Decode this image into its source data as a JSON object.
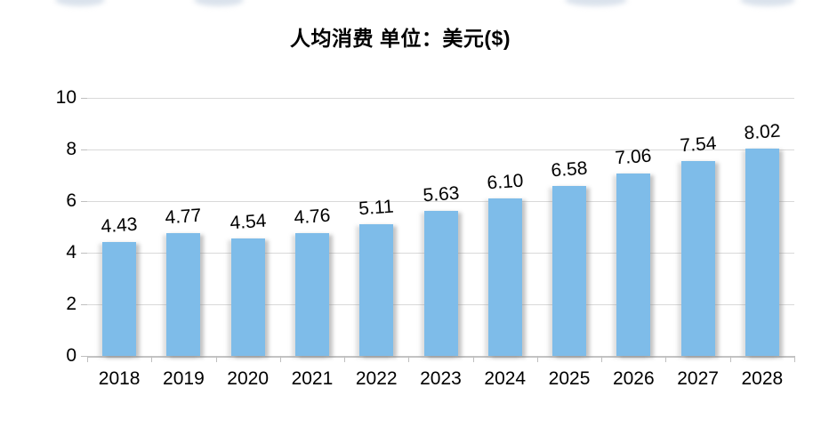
{
  "chart_data": {
    "type": "bar",
    "title": "人均消费 单位：美元($)",
    "categories": [
      "2018",
      "2019",
      "2020",
      "2021",
      "2022",
      "2023",
      "2024",
      "2025",
      "2026",
      "2027",
      "2028"
    ],
    "values": [
      4.43,
      4.77,
      4.54,
      4.76,
      5.11,
      5.63,
      6.1,
      6.58,
      7.06,
      7.54,
      8.02
    ],
    "value_labels": [
      "4.43",
      "4.77",
      "4.54",
      "4.76",
      "5.11",
      "5.63",
      "6.10",
      "6.58",
      "7.06",
      "7.54",
      "8.02"
    ],
    "xlabel": "",
    "ylabel": "",
    "ylim": [
      0,
      10
    ],
    "yticks": [
      0,
      2,
      4,
      6,
      8,
      10
    ],
    "grid": true,
    "legend_position": "none",
    "bar_color": "#7ebce9",
    "gridline_color": "#d9d9d9",
    "axis_color": "#bfbfbf",
    "text_color": "#000000"
  }
}
